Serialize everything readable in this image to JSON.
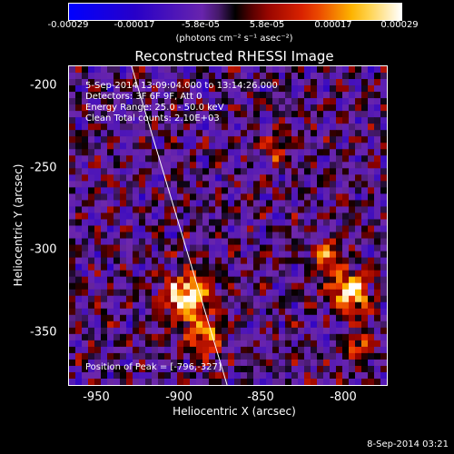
{
  "colorbar": {
    "ticks": [
      "-0.00029",
      "-0.00017",
      "-5.8e-05",
      "5.8e-05",
      "0.00017",
      "0.00029"
    ],
    "units": "(photons cm⁻² s⁻¹ asec⁻²)",
    "range": [
      -0.00029,
      0.00029
    ]
  },
  "chart_data": {
    "type": "heatmap",
    "title": "Reconstructed RHESSI Image",
    "xlabel": "Heliocentric X (arcsec)",
    "ylabel": "Heliocentric Y (arcsec)",
    "xlim": [
      -967,
      -774
    ],
    "ylim": [
      -383,
      -190
    ],
    "xticks": [
      "-950",
      "-900",
      "-850",
      "-800"
    ],
    "yticks": [
      "-200",
      "-250",
      "-300",
      "-350"
    ],
    "peak": {
      "x": -796,
      "y": -327
    },
    "limb_line": {
      "start": [
        -929,
        -190
      ],
      "end": [
        -871,
        -383
      ]
    },
    "annotations": {
      "time": "5-Sep-2014 13:09:04.000 to 13:14:26.000",
      "detectors": "Detectors: 3F 6F 9F, Att 0",
      "energy": "Energy Range: 25.0 - 50.0 keV",
      "method": "Clean     Total counts: 2.10E+03",
      "peak": "Position of Peak = [-796,-327]"
    }
  },
  "footer": {
    "timestamp": "8-Sep-2014 03:21"
  }
}
